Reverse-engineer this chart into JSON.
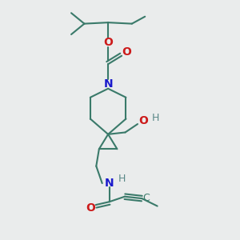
{
  "background_color": "#eaecec",
  "bond_color": "#3a7a6a",
  "bond_width": 1.5,
  "N_color": "#1a1acc",
  "O_color": "#cc1a1a",
  "H_color": "#5a8888",
  "figsize": [
    3.0,
    3.0
  ],
  "dpi": 100,
  "xlim": [
    0,
    10
  ],
  "ylim": [
    0,
    10
  ]
}
